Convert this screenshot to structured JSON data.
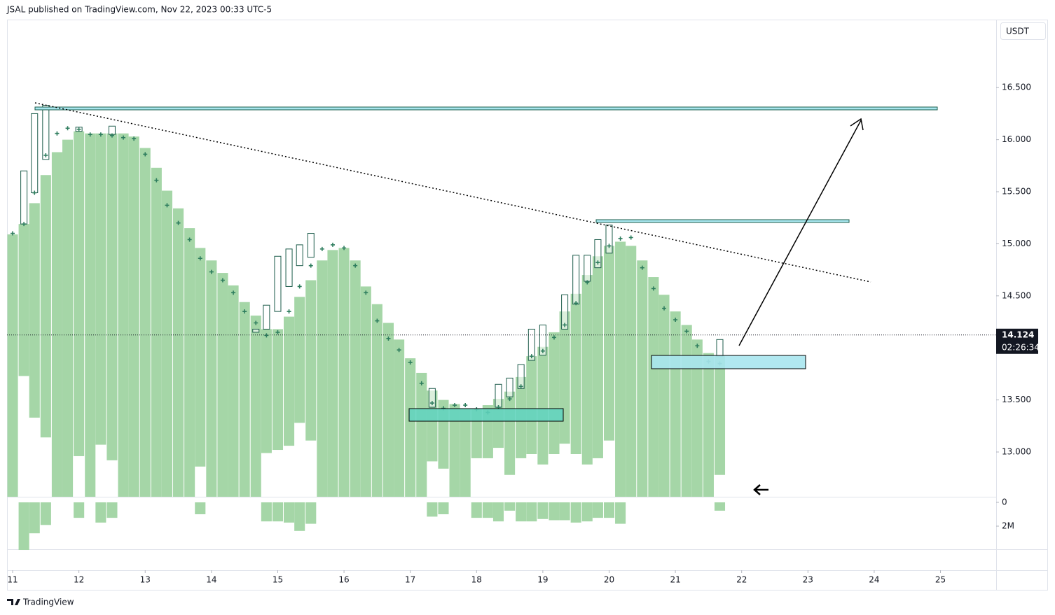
{
  "header": "JSAL published on TradingView.com, Nov 22, 2023 00:33 UTC-5",
  "footer": "TradingView",
  "chart_data": {
    "type": "candlestick",
    "currency": "USDT",
    "x": [
      11,
      11.17,
      11.33,
      11.5,
      11.67,
      11.83,
      12,
      12.17,
      12.33,
      12.5,
      12.67,
      12.83,
      13,
      13.17,
      13.33,
      13.5,
      13.67,
      13.83,
      14,
      14.17,
      14.33,
      14.5,
      14.67,
      14.83,
      15,
      15.17,
      15.33,
      15.5,
      15.67,
      15.83,
      16,
      16.17,
      16.33,
      16.5,
      16.67,
      16.83,
      17,
      17.17,
      17.33,
      17.5,
      17.67,
      17.83,
      18,
      18.17,
      18.33,
      18.5,
      18.67,
      18.83,
      19,
      19.17,
      19.33,
      19.5,
      19.67,
      19.83,
      20,
      20.17,
      20.33,
      20.5,
      20.67,
      20.83,
      21,
      21.17,
      21.33,
      21.5,
      21.67
    ],
    "band_top": [
      15.09,
      15.19,
      15.39,
      15.66,
      15.88,
      16.0,
      16.08,
      16.06,
      16.06,
      16.06,
      16.06,
      16.03,
      15.92,
      15.73,
      15.51,
      15.34,
      15.15,
      14.96,
      14.84,
      14.72,
      14.6,
      14.44,
      14.31,
      14.18,
      14.18,
      14.3,
      14.49,
      14.65,
      14.84,
      14.94,
      14.96,
      14.84,
      14.59,
      14.42,
      14.24,
      14.08,
      13.9,
      13.76,
      13.59,
      13.5,
      13.46,
      13.42,
      13.42,
      13.45,
      13.51,
      13.58,
      13.72,
      13.92,
      14.01,
      14.15,
      14.35,
      14.52,
      14.7,
      14.88,
      14.98,
      15.02,
      14.98,
      14.84,
      14.68,
      14.51,
      14.35,
      14.22,
      14.08,
      13.95,
      13.93
    ],
    "band_bottom": [
      12.57,
      13.73,
      13.33,
      13.14,
      12.57,
      12.57,
      12.96,
      12.57,
      13.07,
      12.92,
      12.57,
      12.57,
      12.57,
      12.57,
      12.57,
      12.57,
      12.57,
      12.86,
      12.57,
      12.57,
      12.57,
      12.57,
      12.57,
      12.99,
      13.02,
      13.06,
      13.28,
      13.11,
      12.57,
      12.57,
      12.57,
      12.57,
      12.57,
      12.57,
      12.57,
      12.57,
      12.57,
      12.57,
      12.91,
      12.84,
      12.57,
      12.57,
      12.94,
      12.94,
      13.04,
      12.78,
      12.94,
      12.98,
      12.88,
      12.98,
      13.08,
      12.98,
      12.88,
      12.94,
      13.11,
      12.57,
      12.57,
      12.57,
      12.57,
      12.57,
      12.57,
      12.57,
      12.57,
      12.57,
      12.78
    ],
    "open": [
      null,
      15.19,
      15.49,
      15.81,
      null,
      null,
      16.08,
      null,
      null,
      16.05,
      null,
      null,
      null,
      null,
      null,
      null,
      null,
      null,
      null,
      null,
      null,
      null,
      14.15,
      14.18,
      14.35,
      14.59,
      14.79,
      14.87,
      null,
      null,
      null,
      null,
      null,
      null,
      null,
      null,
      null,
      null,
      13.43,
      null,
      null,
      null,
      null,
      null,
      13.43,
      13.53,
      13.61,
      13.88,
      13.93,
      null,
      14.18,
      14.42,
      14.64,
      14.77,
      14.91,
      null,
      null,
      null,
      null,
      null,
      null,
      null,
      null,
      null,
      13.92
    ],
    "close": [
      null,
      15.7,
      16.25,
      16.33,
      null,
      null,
      16.12,
      null,
      null,
      16.13,
      null,
      null,
      null,
      null,
      null,
      null,
      null,
      null,
      null,
      null,
      null,
      null,
      14.18,
      14.41,
      14.88,
      14.95,
      14.99,
      15.1,
      null,
      null,
      null,
      null,
      null,
      null,
      null,
      null,
      null,
      null,
      13.61,
      null,
      null,
      null,
      null,
      null,
      13.65,
      13.71,
      13.84,
      14.18,
      14.22,
      null,
      14.51,
      14.89,
      14.89,
      15.04,
      15.18,
      null,
      null,
      null,
      null,
      null,
      null,
      null,
      null,
      null,
      14.08
    ],
    "markers": [
      15.1,
      15.19,
      15.49,
      15.85,
      16.06,
      16.11,
      16.1,
      16.05,
      16.05,
      16.04,
      16.02,
      16.01,
      15.86,
      15.61,
      15.37,
      15.2,
      15.04,
      14.86,
      14.73,
      14.65,
      14.53,
      14.35,
      14.24,
      14.12,
      14.15,
      14.35,
      14.59,
      14.79,
      14.95,
      14.99,
      14.96,
      14.79,
      14.53,
      14.26,
      14.09,
      13.98,
      13.86,
      13.66,
      13.47,
      13.42,
      13.45,
      13.45,
      13.41,
      13.38,
      13.43,
      13.51,
      13.63,
      13.92,
      13.97,
      14.1,
      14.22,
      14.43,
      14.63,
      14.82,
      14.98,
      15.05,
      15.06,
      14.77,
      14.57,
      14.38,
      14.27,
      14.16,
      14.02,
      13.87,
      13.85
    ],
    "volume": [
      0,
      4.0,
      2.6,
      1.9,
      0,
      0,
      1.3,
      0,
      1.7,
      1.3,
      0,
      0,
      0,
      0,
      0,
      0,
      0,
      1.0,
      0,
      0,
      0,
      0,
      0,
      1.6,
      1.6,
      1.7,
      2.4,
      1.8,
      0,
      0,
      0,
      0,
      0,
      0,
      0,
      0,
      0,
      0,
      1.2,
      1.0,
      0,
      0,
      1.3,
      1.3,
      1.6,
      0.7,
      1.6,
      1.6,
      1.4,
      1.5,
      1.5,
      1.7,
      1.6,
      1.3,
      1.3,
      1.8,
      0,
      0,
      0,
      0,
      0,
      0,
      0,
      0,
      0.7
    ],
    "band_color": "#a5d6a7",
    "candle_color": "#1d5c4b",
    "marker_color": "#2e7d5e",
    "volume_color": "#a5d6a7",
    "xlim": [
      10.915,
      25.84
    ],
    "xticks": [
      11,
      12,
      13,
      14,
      15,
      16,
      17,
      18,
      19,
      20,
      21,
      22,
      23,
      24,
      25
    ],
    "ylim": [
      12.57,
      17.14
    ],
    "yticks": [
      {
        "value": 13,
        "label": "13.000"
      },
      {
        "value": 13.5,
        "label": "13.500"
      },
      {
        "value": 14,
        "label": "14.000"
      },
      {
        "value": 14.5,
        "label": "14.500"
      },
      {
        "value": 15,
        "label": "15.000"
      },
      {
        "value": 15.5,
        "label": "15.500"
      },
      {
        "value": 16,
        "label": "16.000"
      },
      {
        "value": 16.5,
        "label": "16.500"
      }
    ],
    "y2lim": [
      -0.47,
      3.94
    ],
    "y2ticks": [
      0,
      {
        "value": 2,
        "label": "2M"
      }
    ],
    "last_price": 14.124,
    "countdown": "02:26:34"
  }
}
